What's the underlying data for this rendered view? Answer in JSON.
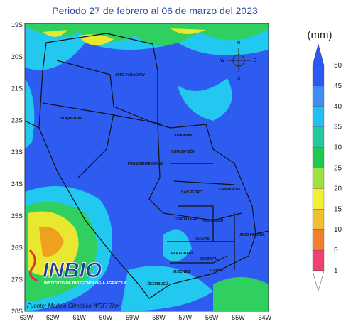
{
  "title": "Periodo 27 de febrero al 06 de marzo del 2023",
  "axes": {
    "lat": [
      "19S",
      "20S",
      "21S",
      "22S",
      "23S",
      "24S",
      "25S",
      "26S",
      "27S",
      "28S"
    ],
    "lon": [
      "63W",
      "62W",
      "61W",
      "60W",
      "59W",
      "58W",
      "57W",
      "56W",
      "55W",
      "54W"
    ]
  },
  "legend": {
    "unit": "(mm)",
    "ticks": [
      "50",
      "45",
      "40",
      "35",
      "30",
      "25",
      "20",
      "15",
      "10",
      "5",
      "1"
    ]
  },
  "compass": {
    "n": "N",
    "s": "S",
    "e": "E",
    "w": "W"
  },
  "regions": [
    {
      "label": "ALTO PARAGUAY"
    },
    {
      "label": "BOQUERON"
    },
    {
      "label": "PRESIDENTE HAYES"
    },
    {
      "label": "AMAMBAY"
    },
    {
      "label": "CONCEPCIÓN"
    },
    {
      "label": "SAN PEDRO"
    },
    {
      "label": "CANINDEYU"
    },
    {
      "label": "CORDILLERA"
    },
    {
      "label": "CAAGUAZÚ"
    },
    {
      "label": "ALTO PARANÁ"
    },
    {
      "label": "GUAIRÁ"
    },
    {
      "label": "PARAGUARÍ"
    },
    {
      "label": "CAAZAPÁ"
    },
    {
      "label": "MISIONES"
    },
    {
      "label": "ITAPÚA"
    },
    {
      "label": "ÑEEMBUCÚ"
    }
  ],
  "logo": {
    "name": "INBIO",
    "subtitle": "INSTITUTO DE BIOTECNOLOGÍA AGRÍCOLA"
  },
  "source": "Fuente: Modelo Climático WRF/ 7km"
}
